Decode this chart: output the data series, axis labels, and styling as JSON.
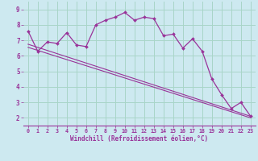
{
  "xlabel": "Windchill (Refroidissement éolien,°C)",
  "bg_color": "#cde9f0",
  "grid_color": "#a8d5c8",
  "line_color": "#993399",
  "xlim": [
    -0.5,
    23.5
  ],
  "ylim": [
    1.5,
    9.5
  ],
  "xticks": [
    0,
    1,
    2,
    3,
    4,
    5,
    6,
    7,
    8,
    9,
    10,
    11,
    12,
    13,
    14,
    15,
    16,
    17,
    18,
    19,
    20,
    21,
    22,
    23
  ],
  "yticks": [
    2,
    3,
    4,
    5,
    6,
    7,
    8,
    9
  ],
  "curve1_x": [
    0,
    1,
    2,
    3,
    4,
    5,
    6,
    7,
    8,
    9,
    10,
    11,
    12,
    13,
    14,
    15,
    16,
    17,
    18,
    19,
    20,
    21,
    22,
    23
  ],
  "curve1_y": [
    7.6,
    6.3,
    6.9,
    6.8,
    7.5,
    6.7,
    6.6,
    8.0,
    8.3,
    8.5,
    8.8,
    8.3,
    8.5,
    8.4,
    7.3,
    7.4,
    6.5,
    7.1,
    6.3,
    4.5,
    3.5,
    2.6,
    3.0,
    2.1
  ],
  "line2_x": [
    0,
    23
  ],
  "line2_y": [
    6.75,
    2.1
  ],
  "line3_x": [
    0,
    23
  ],
  "line3_y": [
    6.55,
    2.0
  ]
}
